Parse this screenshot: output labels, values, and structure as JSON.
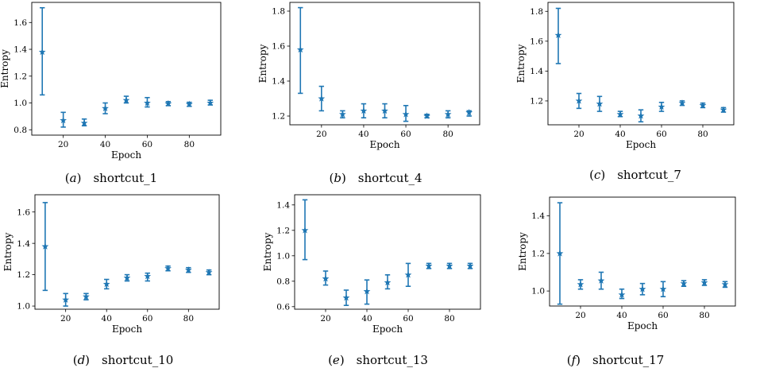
{
  "marker_color": "#1f77b4",
  "chart_data": [
    {
      "type": "scatter",
      "caption_letter": "a",
      "caption_name": "shortcut_1",
      "xlabel": "Epoch",
      "ylabel": "Entropy",
      "xlim": [
        5,
        95
      ],
      "ylim": [
        0.76,
        1.75
      ],
      "xticks": [
        20,
        40,
        60,
        80
      ],
      "yticks": [
        0.8,
        1.0,
        1.2,
        1.4,
        1.6
      ],
      "ytick_labels": [
        "0.8",
        "1.0",
        "1.2",
        "1.4",
        "1.6"
      ],
      "marker": "star",
      "error_bars": true,
      "points": [
        {
          "x": 10,
          "y": 1.38,
          "lo": 1.06,
          "hi": 1.71
        },
        {
          "x": 20,
          "y": 0.87,
          "lo": 0.82,
          "hi": 0.93
        },
        {
          "x": 30,
          "y": 0.85,
          "lo": 0.83,
          "hi": 0.88
        },
        {
          "x": 40,
          "y": 0.96,
          "lo": 0.92,
          "hi": 1.0
        },
        {
          "x": 50,
          "y": 1.02,
          "lo": 1.0,
          "hi": 1.05
        },
        {
          "x": 60,
          "y": 1.0,
          "lo": 0.97,
          "hi": 1.04
        },
        {
          "x": 70,
          "y": 0.995,
          "lo": 0.98,
          "hi": 1.01
        },
        {
          "x": 80,
          "y": 0.99,
          "lo": 0.975,
          "hi": 1.005
        },
        {
          "x": 90,
          "y": 1.0,
          "lo": 0.985,
          "hi": 1.02
        }
      ]
    },
    {
      "type": "scatter",
      "caption_letter": "b",
      "caption_name": "shortcut_4",
      "xlabel": "Epoch",
      "ylabel": "Entropy",
      "xlim": [
        5,
        95
      ],
      "ylim": [
        1.15,
        1.85
      ],
      "xticks": [
        20,
        40,
        60,
        80
      ],
      "yticks": [
        1.2,
        1.4,
        1.6,
        1.8
      ],
      "ytick_labels": [
        "1.2",
        "1.4",
        "1.6",
        "1.8"
      ],
      "marker": "star",
      "error_bars": true,
      "points": [
        {
          "x": 10,
          "y": 1.58,
          "lo": 1.33,
          "hi": 1.82
        },
        {
          "x": 20,
          "y": 1.3,
          "lo": 1.23,
          "hi": 1.37
        },
        {
          "x": 30,
          "y": 1.21,
          "lo": 1.19,
          "hi": 1.23
        },
        {
          "x": 40,
          "y": 1.23,
          "lo": 1.19,
          "hi": 1.27
        },
        {
          "x": 50,
          "y": 1.23,
          "lo": 1.19,
          "hi": 1.27
        },
        {
          "x": 60,
          "y": 1.21,
          "lo": 1.17,
          "hi": 1.26
        },
        {
          "x": 70,
          "y": 1.2,
          "lo": 1.19,
          "hi": 1.21
        },
        {
          "x": 80,
          "y": 1.21,
          "lo": 1.19,
          "hi": 1.23
        },
        {
          "x": 90,
          "y": 1.22,
          "lo": 1.2,
          "hi": 1.23
        }
      ]
    },
    {
      "type": "scatter",
      "caption_letter": "c",
      "caption_name": "shortcut_7",
      "xlabel": "Epoch",
      "ylabel": "Entropy",
      "xlim": [
        5,
        95
      ],
      "ylim": [
        1.04,
        1.86
      ],
      "xticks": [
        20,
        40,
        60,
        80
      ],
      "yticks": [
        1.2,
        1.4,
        1.6,
        1.8
      ],
      "ytick_labels": [
        "1.2",
        "1.4",
        "1.6",
        "1.8"
      ],
      "marker": "star",
      "error_bars": true,
      "points": [
        {
          "x": 10,
          "y": 1.64,
          "lo": 1.45,
          "hi": 1.82
        },
        {
          "x": 20,
          "y": 1.2,
          "lo": 1.15,
          "hi": 1.25
        },
        {
          "x": 30,
          "y": 1.18,
          "lo": 1.13,
          "hi": 1.23
        },
        {
          "x": 40,
          "y": 1.11,
          "lo": 1.095,
          "hi": 1.13
        },
        {
          "x": 50,
          "y": 1.1,
          "lo": 1.06,
          "hi": 1.14
        },
        {
          "x": 60,
          "y": 1.16,
          "lo": 1.13,
          "hi": 1.19
        },
        {
          "x": 70,
          "y": 1.185,
          "lo": 1.17,
          "hi": 1.2
        },
        {
          "x": 80,
          "y": 1.17,
          "lo": 1.155,
          "hi": 1.185
        },
        {
          "x": 90,
          "y": 1.14,
          "lo": 1.125,
          "hi": 1.155
        }
      ]
    },
    {
      "type": "scatter",
      "caption_letter": "d",
      "caption_name": "shortcut_10",
      "xlabel": "Epoch",
      "ylabel": "Entropy",
      "xlim": [
        5,
        95
      ],
      "ylim": [
        0.98,
        1.71
      ],
      "xticks": [
        20,
        40,
        60,
        80
      ],
      "yticks": [
        1.0,
        1.2,
        1.4,
        1.6
      ],
      "ytick_labels": [
        "1.0",
        "1.2",
        "1.4",
        "1.6"
      ],
      "marker": "star",
      "error_bars": true,
      "points": [
        {
          "x": 10,
          "y": 1.38,
          "lo": 1.1,
          "hi": 1.66
        },
        {
          "x": 20,
          "y": 1.04,
          "lo": 1.0,
          "hi": 1.08
        },
        {
          "x": 30,
          "y": 1.06,
          "lo": 1.04,
          "hi": 1.08
        },
        {
          "x": 40,
          "y": 1.14,
          "lo": 1.11,
          "hi": 1.17
        },
        {
          "x": 50,
          "y": 1.18,
          "lo": 1.16,
          "hi": 1.2
        },
        {
          "x": 60,
          "y": 1.19,
          "lo": 1.16,
          "hi": 1.21
        },
        {
          "x": 70,
          "y": 1.24,
          "lo": 1.225,
          "hi": 1.255
        },
        {
          "x": 80,
          "y": 1.23,
          "lo": 1.215,
          "hi": 1.245
        },
        {
          "x": 90,
          "y": 1.215,
          "lo": 1.2,
          "hi": 1.23
        }
      ]
    },
    {
      "type": "scatter",
      "caption_letter": "e",
      "caption_name": "shortcut_13",
      "xlabel": "Epoch",
      "ylabel": "Entropy",
      "xlim": [
        5,
        95
      ],
      "ylim": [
        0.58,
        1.48
      ],
      "xticks": [
        20,
        40,
        60,
        80
      ],
      "yticks": [
        0.6,
        0.8,
        1.0,
        1.2,
        1.4
      ],
      "ytick_labels": [
        "0.6",
        "0.8",
        "1.0",
        "1.2",
        "1.4"
      ],
      "marker": "star",
      "error_bars": true,
      "points": [
        {
          "x": 10,
          "y": 1.2,
          "lo": 0.97,
          "hi": 1.44
        },
        {
          "x": 20,
          "y": 0.82,
          "lo": 0.77,
          "hi": 0.88
        },
        {
          "x": 30,
          "y": 0.67,
          "lo": 0.61,
          "hi": 0.73
        },
        {
          "x": 40,
          "y": 0.72,
          "lo": 0.62,
          "hi": 0.81
        },
        {
          "x": 50,
          "y": 0.79,
          "lo": 0.74,
          "hi": 0.85
        },
        {
          "x": 60,
          "y": 0.85,
          "lo": 0.76,
          "hi": 0.94
        },
        {
          "x": 70,
          "y": 0.92,
          "lo": 0.9,
          "hi": 0.94
        },
        {
          "x": 80,
          "y": 0.92,
          "lo": 0.9,
          "hi": 0.94
        },
        {
          "x": 90,
          "y": 0.92,
          "lo": 0.9,
          "hi": 0.94
        }
      ]
    },
    {
      "type": "scatter",
      "caption_letter": "f",
      "caption_name": "shortcut_17",
      "xlabel": "Epoch",
      "ylabel": "Entropy",
      "xlim": [
        5,
        95
      ],
      "ylim": [
        0.92,
        1.5
      ],
      "xticks": [
        20,
        40,
        60,
        80
      ],
      "yticks": [
        1.0,
        1.2,
        1.4
      ],
      "ytick_labels": [
        "1.0",
        "1.2",
        "1.4"
      ],
      "marker": "star",
      "error_bars": true,
      "points": [
        {
          "x": 10,
          "y": 1.2,
          "lo": 0.93,
          "hi": 1.47
        },
        {
          "x": 20,
          "y": 1.035,
          "lo": 1.01,
          "hi": 1.06
        },
        {
          "x": 30,
          "y": 1.055,
          "lo": 1.01,
          "hi": 1.1
        },
        {
          "x": 40,
          "y": 0.98,
          "lo": 0.96,
          "hi": 1.01
        },
        {
          "x": 50,
          "y": 1.01,
          "lo": 0.98,
          "hi": 1.04
        },
        {
          "x": 60,
          "y": 1.01,
          "lo": 0.97,
          "hi": 1.05
        },
        {
          "x": 70,
          "y": 1.04,
          "lo": 1.025,
          "hi": 1.055
        },
        {
          "x": 80,
          "y": 1.045,
          "lo": 1.03,
          "hi": 1.06
        },
        {
          "x": 90,
          "y": 1.035,
          "lo": 1.02,
          "hi": 1.05
        }
      ]
    }
  ]
}
